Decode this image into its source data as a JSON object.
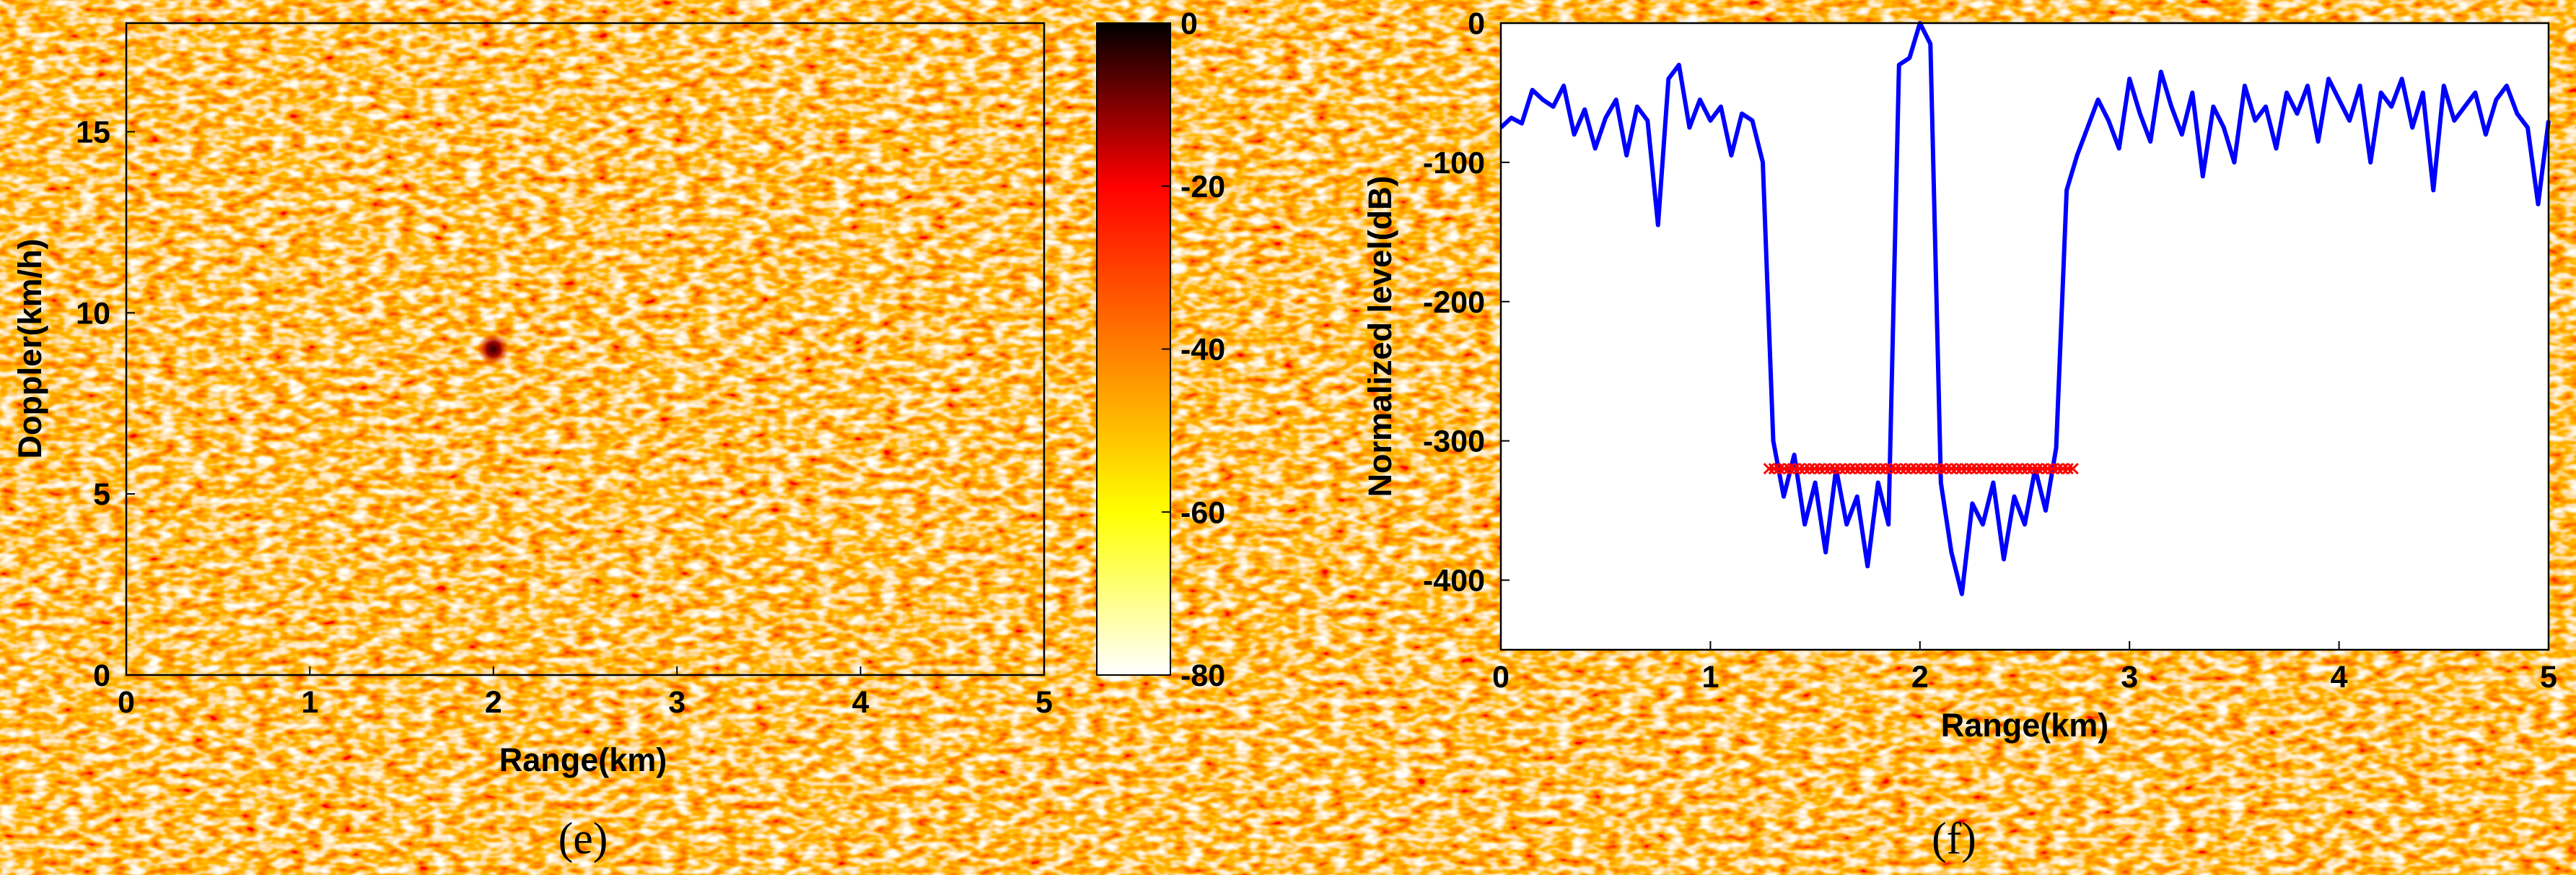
{
  "chart_data": [
    {
      "id": "e",
      "type": "heatmap",
      "caption": "(e)",
      "xlabel": "Range(km)",
      "ylabel": "Doppler(km/h)",
      "xlim": [
        0,
        5
      ],
      "ylim": [
        0,
        18
      ],
      "xticks": [
        "0",
        "1",
        "2",
        "3",
        "4",
        "5"
      ],
      "yticks": [
        "0",
        "5",
        "10",
        "15"
      ],
      "colorbar": {
        "range": [
          -80,
          0
        ],
        "ticks": [
          "0",
          "-20",
          "-40",
          "-60",
          "-80"
        ],
        "colors": [
          "#ffffff",
          "#ffff00",
          "#ff7f00",
          "#ff0000",
          "#000000"
        ]
      },
      "background_level_range_db": [
        -80,
        -40
      ],
      "peak": {
        "x": 2,
        "y": 9,
        "level_db": 0
      }
    },
    {
      "id": "f",
      "type": "line",
      "caption": "(f)",
      "xlabel": "Range(km)",
      "ylabel": "Normalized level(dB)",
      "xlim": [
        0,
        5
      ],
      "ylim": [
        -450,
        0
      ],
      "xticks": [
        "0",
        "1",
        "2",
        "3",
        "4",
        "5"
      ],
      "yticks": [
        "0",
        "-100",
        "-200",
        "-300",
        "-400"
      ],
      "series": [
        {
          "color": "#0000ff",
          "x": [
            0.0,
            0.05,
            0.1,
            0.15,
            0.2,
            0.25,
            0.3,
            0.35,
            0.4,
            0.45,
            0.5,
            0.55,
            0.6,
            0.65,
            0.7,
            0.75,
            0.8,
            0.85,
            0.9,
            0.95,
            1.0,
            1.05,
            1.1,
            1.15,
            1.2,
            1.25,
            1.3,
            1.35,
            1.4,
            1.45,
            1.5,
            1.55,
            1.6,
            1.65,
            1.7,
            1.75,
            1.8,
            1.85,
            1.9,
            1.95,
            2.0,
            2.05,
            2.1,
            2.15,
            2.2,
            2.25,
            2.3,
            2.35,
            2.4,
            2.45,
            2.5,
            2.55,
            2.6,
            2.65,
            2.7,
            2.75,
            2.8,
            2.85,
            2.9,
            2.95,
            3.0,
            3.05,
            3.1,
            3.15,
            3.2,
            3.25,
            3.3,
            3.35,
            3.4,
            3.45,
            3.5,
            3.55,
            3.6,
            3.65,
            3.7,
            3.75,
            3.8,
            3.85,
            3.9,
            3.95,
            4.0,
            4.05,
            4.1,
            4.15,
            4.2,
            4.25,
            4.3,
            4.35,
            4.4,
            4.45,
            4.5,
            4.55,
            4.6,
            4.65,
            4.7,
            4.75,
            4.8,
            4.85,
            4.9,
            4.95,
            5.0
          ],
          "y": [
            -75,
            -68,
            -72,
            -48,
            -55,
            -60,
            -45,
            -80,
            -62,
            -90,
            -68,
            -55,
            -95,
            -60,
            -70,
            -145,
            -40,
            -30,
            -75,
            -55,
            -70,
            -60,
            -95,
            -65,
            -70,
            -100,
            -300,
            -340,
            -310,
            -360,
            -330,
            -380,
            -320,
            -360,
            -340,
            -390,
            -330,
            -360,
            -30,
            -25,
            0,
            -15,
            -330,
            -380,
            -410,
            -345,
            -360,
            -330,
            -385,
            -340,
            -360,
            -320,
            -350,
            -305,
            -120,
            -95,
            -75,
            -55,
            -70,
            -90,
            -40,
            -65,
            -85,
            -35,
            -60,
            -80,
            -50,
            -110,
            -60,
            -75,
            -100,
            -45,
            -70,
            -60,
            -90,
            -50,
            -65,
            -45,
            -85,
            -40,
            -55,
            -70,
            -45,
            -100,
            -50,
            -60,
            -40,
            -75,
            -50,
            -120,
            -45,
            -70,
            -60,
            -50,
            -80,
            -55,
            -45,
            -65,
            -75,
            -130,
            -70
          ]
        },
        {
          "color": "#ff0000",
          "marker": "x",
          "x": [
            1.28,
            2.73
          ],
          "y": [
            -320,
            -320
          ]
        }
      ]
    }
  ],
  "icons": {
    "colorbar": "colorbar-gradient",
    "markers": "x-marker"
  }
}
